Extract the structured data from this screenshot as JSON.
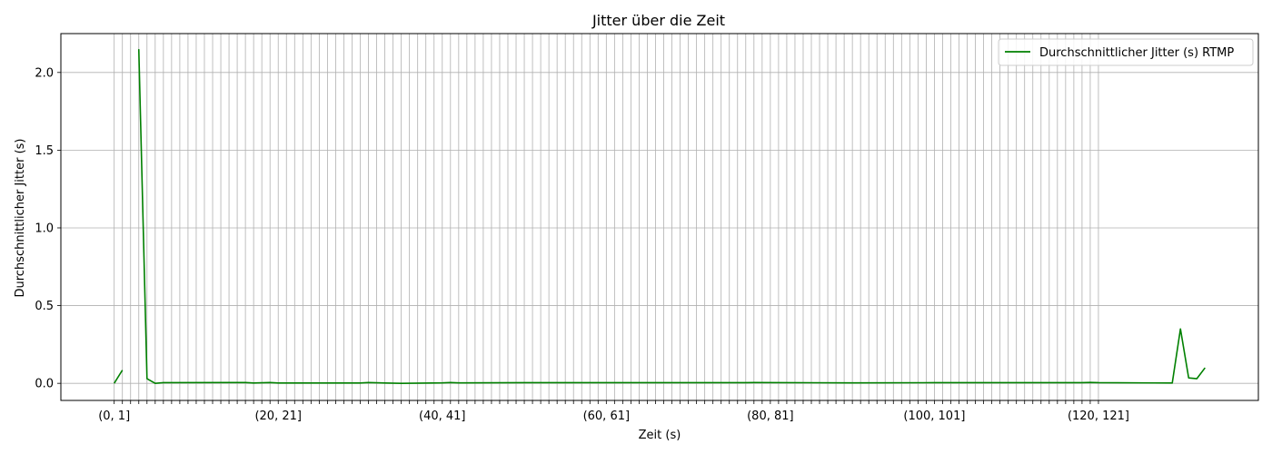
{
  "chart_data": {
    "type": "line",
    "title": "Jitter über die Zeit",
    "xlabel": "Zeit (s)",
    "ylabel": "Durchschnittlicher Jitter (s)",
    "legend_position": "upper-right",
    "grid": true,
    "ylim": [
      -0.11,
      2.25
    ],
    "yticks": [
      0.0,
      0.5,
      1.0,
      1.5,
      2.0
    ],
    "ytick_labels": [
      "0.0",
      "0.5",
      "1.0",
      "1.5",
      "2.0"
    ],
    "x_start": 0,
    "x_end": 133,
    "xlim": [
      -6.5,
      139.5
    ],
    "xtick_start": 0,
    "xtick_count": 121,
    "xtick_labels": [
      {
        "index": 0,
        "label": "(0, 1]"
      },
      {
        "index": 20,
        "label": "(20, 21]"
      },
      {
        "index": 40,
        "label": "(40, 41]"
      },
      {
        "index": 60,
        "label": "(60, 61]"
      },
      {
        "index": 80,
        "label": "(80, 81]"
      },
      {
        "index": 100,
        "label": "(100, 101]"
      },
      {
        "index": 120,
        "label": "(120, 121]"
      }
    ],
    "series": [
      {
        "name": "Durchschnittlicher Jitter (s) RTMP",
        "color": "#008000",
        "segments": [
          [
            [
              0,
              0.0
            ],
            [
              1,
              0.085
            ]
          ],
          [
            [
              3,
              2.15
            ],
            [
              4,
              0.03
            ],
            [
              5,
              0.0
            ],
            [
              6,
              0.004
            ],
            [
              16,
              0.005
            ],
            [
              17,
              0.002
            ],
            [
              19,
              0.005
            ],
            [
              20,
              0.002
            ],
            [
              30,
              0.002
            ],
            [
              31,
              0.005
            ],
            [
              33,
              0.002
            ],
            [
              35,
              0.0
            ],
            [
              40,
              0.003
            ],
            [
              41,
              0.005
            ],
            [
              42,
              0.003
            ],
            [
              50,
              0.004
            ],
            [
              60,
              0.004
            ],
            [
              77,
              0.004
            ],
            [
              78,
              0.005
            ],
            [
              90,
              0.003
            ],
            [
              100,
              0.004
            ],
            [
              118,
              0.004
            ],
            [
              119,
              0.006
            ],
            [
              120,
              0.004
            ],
            [
              129,
              0.002
            ],
            [
              130,
              0.35
            ],
            [
              131,
              0.035
            ],
            [
              132,
              0.03
            ],
            [
              133,
              0.1
            ]
          ]
        ]
      }
    ]
  }
}
